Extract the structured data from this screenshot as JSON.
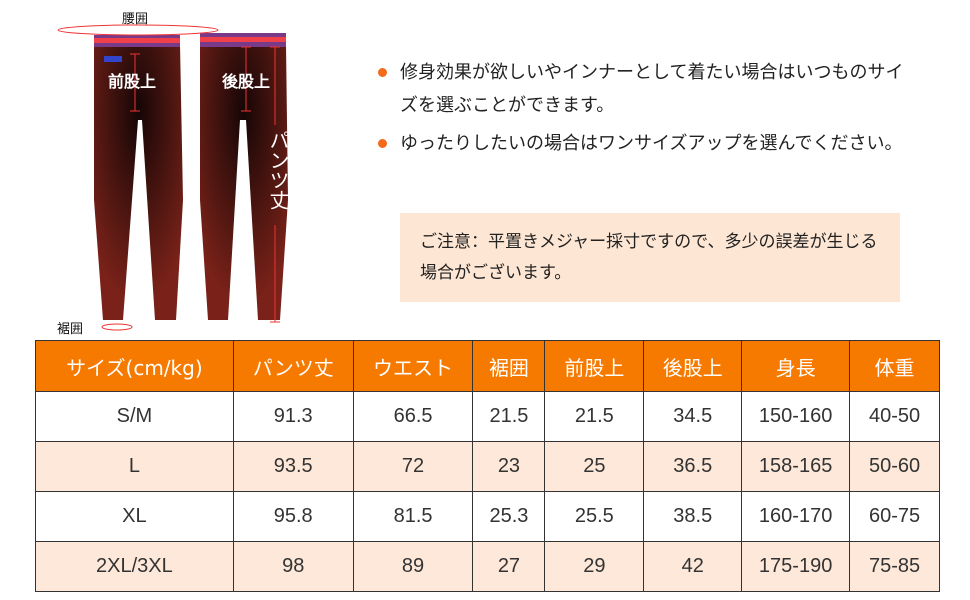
{
  "figure": {
    "waist_label": "腰囲",
    "front_rise_label": "前股上",
    "back_rise_label": "後股上",
    "length_label": "パンツ丈",
    "hem_label": "裾囲"
  },
  "bullets": [
    "修身効果が欲しいやインナーとして着たい場合はいつものサイズを選ぶことができます。",
    "ゆったりしたいの場合はワンサイズアップを選んでください。"
  ],
  "note": "ご注意：平置きメジャー採寸ですので、多少の誤差が生じる場合がございます。",
  "table": {
    "headers": [
      "サイズ(cm/kg)",
      "パンツ丈",
      "ウエスト",
      "裾囲",
      "前股上",
      "後股上",
      "身長",
      "体重"
    ],
    "rows": [
      [
        "S/M",
        "91.3",
        "66.5",
        "21.5",
        "21.5",
        "34.5",
        "150-160",
        "40-50"
      ],
      [
        "L",
        "93.5",
        "72",
        "23",
        "25",
        "36.5",
        "158-165",
        "50-60"
      ],
      [
        "XL",
        "95.8",
        "81.5",
        "25.3",
        "25.5",
        "38.5",
        "160-170",
        "60-75"
      ],
      [
        "2XL/3XL",
        "98",
        "89",
        "27",
        "29",
        "42",
        "175-190",
        "75-85"
      ]
    ]
  },
  "colors": {
    "header": "#f77a00",
    "alt_row": "#fde8d9",
    "bullet": "#f26a1b",
    "note_bg": "#fde6d4",
    "pants": "#6a1a14"
  }
}
